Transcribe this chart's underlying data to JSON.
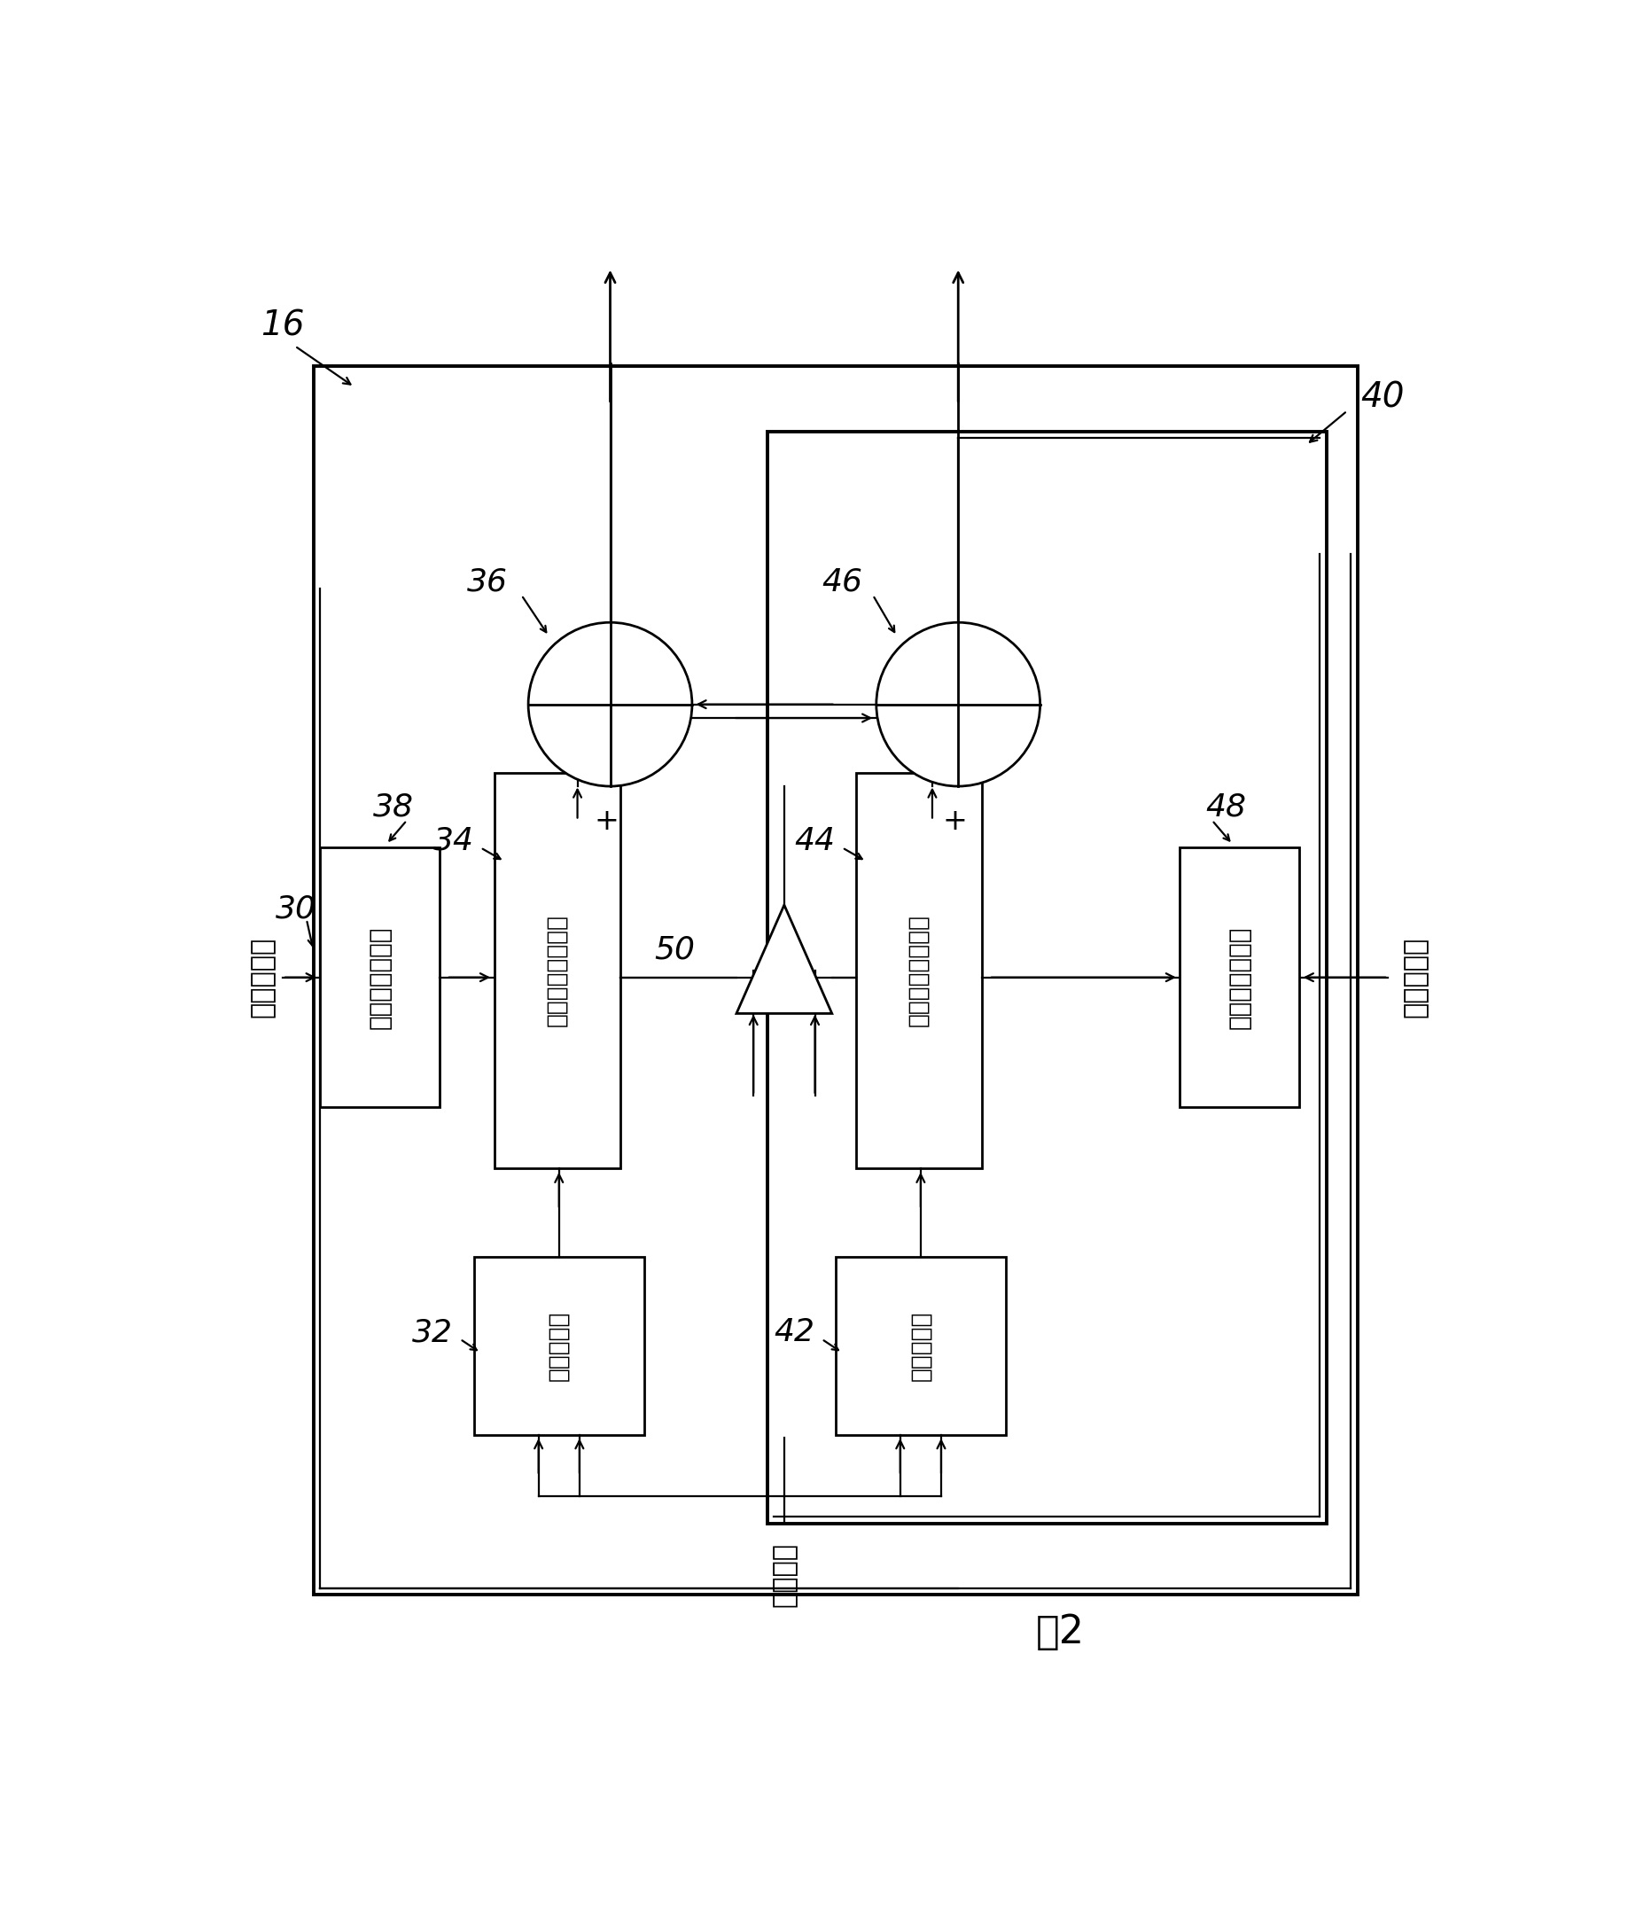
{
  "bg_color": "#ffffff",
  "lw_thick": 2.8,
  "lw_med": 2.0,
  "lw_thin": 1.6,
  "labels": {
    "16": "16",
    "40": "40",
    "30": "第一量信号",
    "38": "第一衰减计数器",
    "34": "第一状态暂存模块",
    "36": "36",
    "32": "第一多工器",
    "50": "50",
    "46": "46",
    "44": "44",
    "42": "第二多工器",
    "43": "第二状态暂存模块",
    "48": "第二衰减计数器",
    "49": "第二量信号",
    "clk": "远端信号",
    "fig": "图2"
  }
}
